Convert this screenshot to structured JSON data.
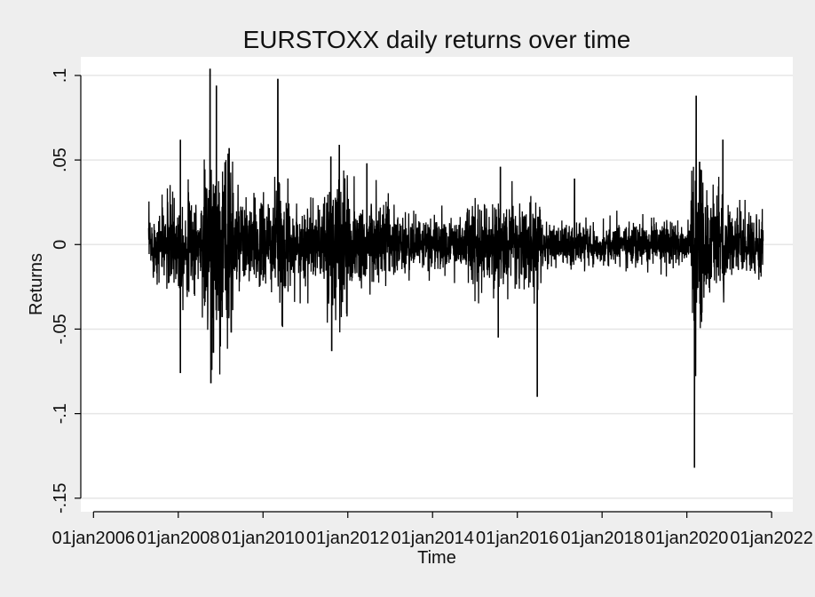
{
  "chart_data": {
    "type": "line",
    "title": "EURSTOXX daily returns over time",
    "xlabel": "Time",
    "ylabel": "Returns",
    "x_range": [
      2005.7,
      2022.5
    ],
    "ylim": [
      -0.158,
      0.111
    ],
    "grid": true,
    "x_ticks": [
      {
        "value": 2006,
        "label": "01jan2006"
      },
      {
        "value": 2008,
        "label": "01jan2008"
      },
      {
        "value": 2010,
        "label": "01jan2010"
      },
      {
        "value": 2012,
        "label": "01jan2012"
      },
      {
        "value": 2014,
        "label": "01jan2014"
      },
      {
        "value": 2016,
        "label": "01jan2016"
      },
      {
        "value": 2018,
        "label": "01jan2018"
      },
      {
        "value": 2020,
        "label": "01jan2020"
      },
      {
        "value": 2022,
        "label": "01jan2022"
      }
    ],
    "y_ticks": [
      {
        "value": 0.1,
        "label": ".1"
      },
      {
        "value": 0.05,
        "label": ".05"
      },
      {
        "value": 0,
        "label": "0"
      },
      {
        "value": -0.05,
        "label": "-.05"
      },
      {
        "value": -0.1,
        "label": "-.1"
      },
      {
        "value": -0.15,
        "label": "-.15"
      }
    ],
    "series": [
      {
        "name": "Returns",
        "start": 2007.3,
        "end": 2021.8,
        "volatility_regimes": [
          {
            "from": 2007.3,
            "to": 2007.6,
            "sd": 0.009
          },
          {
            "from": 2007.6,
            "to": 2008.6,
            "sd": 0.014
          },
          {
            "from": 2008.6,
            "to": 2009.3,
            "sd": 0.026
          },
          {
            "from": 2009.3,
            "to": 2010.2,
            "sd": 0.013
          },
          {
            "from": 2010.2,
            "to": 2010.6,
            "sd": 0.016
          },
          {
            "from": 2010.6,
            "to": 2011.5,
            "sd": 0.011
          },
          {
            "from": 2011.5,
            "to": 2012.0,
            "sd": 0.021
          },
          {
            "from": 2012.0,
            "to": 2013.0,
            "sd": 0.013
          },
          {
            "from": 2013.0,
            "to": 2014.8,
            "sd": 0.008
          },
          {
            "from": 2014.8,
            "to": 2016.6,
            "sd": 0.012
          },
          {
            "from": 2016.6,
            "to": 2020.1,
            "sd": 0.006
          },
          {
            "from": 2020.1,
            "to": 2020.4,
            "sd": 0.028
          },
          {
            "from": 2020.4,
            "to": 2020.9,
            "sd": 0.015
          },
          {
            "from": 2020.9,
            "to": 2021.8,
            "sd": 0.008
          }
        ],
        "spikes": [
          {
            "x": 2008.05,
            "y": 0.062
          },
          {
            "x": 2008.05,
            "y": -0.076
          },
          {
            "x": 2008.75,
            "y": 0.104
          },
          {
            "x": 2008.77,
            "y": -0.082
          },
          {
            "x": 2008.9,
            "y": 0.094
          },
          {
            "x": 2008.83,
            "y": -0.064
          },
          {
            "x": 2009.2,
            "y": 0.057
          },
          {
            "x": 2009.25,
            "y": -0.052
          },
          {
            "x": 2010.35,
            "y": 0.098
          },
          {
            "x": 2010.45,
            "y": -0.048
          },
          {
            "x": 2011.6,
            "y": 0.052
          },
          {
            "x": 2011.62,
            "y": -0.063
          },
          {
            "x": 2011.8,
            "y": 0.059
          },
          {
            "x": 2012.45,
            "y": 0.048
          },
          {
            "x": 2015.6,
            "y": 0.046
          },
          {
            "x": 2015.55,
            "y": -0.055
          },
          {
            "x": 2016.47,
            "y": -0.09
          },
          {
            "x": 2017.35,
            "y": 0.039
          },
          {
            "x": 2020.18,
            "y": -0.132
          },
          {
            "x": 2020.22,
            "y": 0.088
          },
          {
            "x": 2020.3,
            "y": 0.049
          },
          {
            "x": 2020.85,
            "y": 0.062
          }
        ]
      }
    ]
  }
}
